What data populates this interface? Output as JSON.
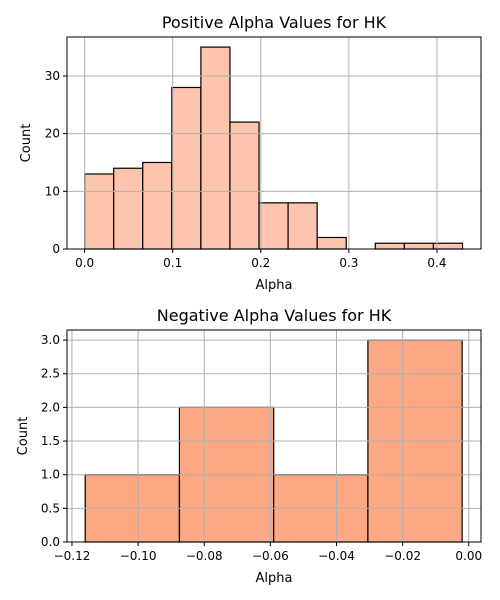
{
  "chart_data": [
    {
      "type": "bar",
      "histogram": true,
      "title": "Positive Alpha Values for HK",
      "xlabel": "Alpha",
      "ylabel": "Count",
      "bin_edges": [
        0.0,
        0.033,
        0.066,
        0.099,
        0.132,
        0.165,
        0.198,
        0.231,
        0.264,
        0.297,
        0.33,
        0.363,
        0.396,
        0.429
      ],
      "values": [
        13,
        14,
        15,
        28,
        35,
        22,
        8,
        8,
        2,
        0,
        1,
        1,
        1
      ],
      "xlim": [
        -0.02,
        0.45
      ],
      "ylim": [
        0,
        36.75
      ],
      "xticks": [
        0.0,
        0.1,
        0.2,
        0.3,
        0.4
      ],
      "xtick_labels": [
        "0.0",
        "0.1",
        "0.2",
        "0.3",
        "0.4"
      ],
      "yticks": [
        0,
        10,
        20,
        30
      ],
      "ytick_labels": [
        "0",
        "10",
        "20",
        "30"
      ],
      "grid": true,
      "bar_color": "#fdc4ae",
      "edge_color": "#000000"
    },
    {
      "type": "bar",
      "histogram": true,
      "title": "Negative Alpha Values for HK",
      "xlabel": "Alpha",
      "ylabel": "Count",
      "bin_edges": [
        -0.116,
        -0.0875,
        -0.059,
        -0.0305,
        -0.002
      ],
      "values": [
        1,
        2,
        1,
        3
      ],
      "xlim": [
        -0.1215,
        0.0037
      ],
      "ylim": [
        0,
        3.15
      ],
      "xticks": [
        -0.12,
        -0.1,
        -0.08,
        -0.06,
        -0.04,
        -0.02,
        0.0
      ],
      "xtick_labels": [
        "−0.12",
        "−0.10",
        "−0.08",
        "−0.06",
        "−0.04",
        "−0.02",
        "0.00"
      ],
      "yticks": [
        0.0,
        0.5,
        1.0,
        1.5,
        2.0,
        2.5,
        3.0
      ],
      "ytick_labels": [
        "0.0",
        "0.5",
        "1.0",
        "1.5",
        "2.0",
        "2.5",
        "3.0"
      ],
      "grid": true,
      "bar_color": "#fca882",
      "edge_color": "#000000"
    }
  ]
}
